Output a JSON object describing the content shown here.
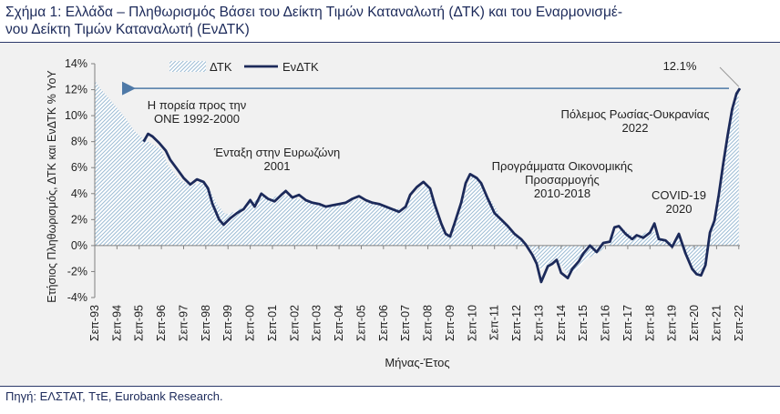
{
  "figure": {
    "title_line1": "Σχήμα 1: Ελλάδα – Πληθωρισμός Βάσει του Δείκτη Τιμών Καταναλωτή (ΔΤΚ) και του Εναρμονισμέ-",
    "title_line2": "νου Δείκτη Τιμών Καταναλωτή (ΕνΔΤΚ)",
    "source": "Πηγή: ΕΛΣΤΑΤ, ΤτΕ, Eurobank Research."
  },
  "chart_data": {
    "type": "area",
    "xlabel": "Μήνας-Έτος",
    "ylabel": "Ετήσιος Πληθωρισμός, ΔΤΚ και ΕνΔΤΚ % YoY",
    "ylim": [
      -4,
      14
    ],
    "y_ticks": [
      "14%",
      "12%",
      "10%",
      "8%",
      "6%",
      "4%",
      "2%",
      "0%",
      "-2%",
      "-4%"
    ],
    "x_ticks": [
      "Σεπ-93",
      "Σεπ-94",
      "Σεπ-95",
      "Σεπ-96",
      "Σεπ-97",
      "Σεπ-98",
      "Σεπ-99",
      "Σεπ-00",
      "Σεπ-01",
      "Σεπ-02",
      "Σεπ-03",
      "Σεπ-04",
      "Σεπ-05",
      "Σεπ-06",
      "Σεπ-07",
      "Σεπ-08",
      "Σεπ-09",
      "Σεπ-10",
      "Σεπ-11",
      "Σεπ-12",
      "Σεπ-13",
      "Σεπ-14",
      "Σεπ-15",
      "Σεπ-16",
      "Σεπ-17",
      "Σεπ-18",
      "Σεπ-19",
      "Σεπ-20",
      "Σεπ-21",
      "Σεπ-22"
    ],
    "legend": [
      "ΔΤΚ",
      "ΕνΔΤΚ"
    ],
    "legend_position": "top-left",
    "grid": false,
    "colors": {
      "cpi": "#8fb3cf",
      "hicp": "#1c2a5a",
      "arrow": "#4e79a7"
    },
    "series": [
      {
        "name": "ΔΤΚ",
        "style": "hatched-area",
        "points": [
          [
            1993.7,
            12.7
          ],
          [
            1994.0,
            12.0
          ],
          [
            1994.5,
            11.0
          ],
          [
            1995.0,
            10.0
          ],
          [
            1995.5,
            8.8
          ],
          [
            1995.9,
            8.2
          ],
          [
            1996.3,
            7.8
          ],
          [
            1996.7,
            7.4
          ],
          [
            1997.0,
            6.2
          ],
          [
            1997.5,
            5.1
          ],
          [
            1998.0,
            4.6
          ],
          [
            1998.5,
            4.9
          ],
          [
            1998.8,
            4.6
          ],
          [
            1999.2,
            3.2
          ],
          [
            1999.6,
            2.4
          ],
          [
            2000.0,
            2.6
          ],
          [
            2000.4,
            3.0
          ],
          [
            2000.8,
            3.4
          ],
          [
            2001.2,
            3.9
          ],
          [
            2001.6,
            3.6
          ],
          [
            2002.0,
            3.9
          ],
          [
            2002.5,
            3.8
          ],
          [
            2003.0,
            3.5
          ],
          [
            2003.5,
            3.4
          ],
          [
            2004.0,
            3.0
          ],
          [
            2004.5,
            3.1
          ],
          [
            2005.0,
            3.2
          ],
          [
            2005.5,
            3.6
          ],
          [
            2006.0,
            3.3
          ],
          [
            2006.5,
            3.1
          ],
          [
            2007.0,
            2.9
          ],
          [
            2007.5,
            2.8
          ],
          [
            2007.9,
            3.6
          ],
          [
            2008.3,
            4.4
          ],
          [
            2008.6,
            4.8
          ],
          [
            2008.9,
            3.8
          ],
          [
            2009.2,
            1.7
          ],
          [
            2009.5,
            0.9
          ],
          [
            2009.8,
            1.0
          ],
          [
            2010.1,
            2.4
          ],
          [
            2010.4,
            4.2
          ],
          [
            2010.7,
            5.4
          ],
          [
            2011.0,
            5.0
          ],
          [
            2011.4,
            3.8
          ],
          [
            2011.8,
            2.8
          ],
          [
            2012.0,
            2.0
          ],
          [
            2012.5,
            1.2
          ],
          [
            2012.8,
            0.6
          ],
          [
            2013.1,
            0.2
          ],
          [
            2013.4,
            -0.4
          ],
          [
            2013.8,
            -1.9
          ],
          [
            2014.0,
            -1.6
          ],
          [
            2014.3,
            -1.2
          ],
          [
            2014.7,
            -1.5
          ],
          [
            2015.0,
            -2.2
          ],
          [
            2015.4,
            -1.9
          ],
          [
            2015.8,
            -1.1
          ],
          [
            2016.1,
            -0.8
          ],
          [
            2016.5,
            -0.4
          ],
          [
            2016.8,
            0.0
          ],
          [
            2017.1,
            0.9
          ],
          [
            2017.4,
            1.4
          ],
          [
            2017.8,
            0.9
          ],
          [
            2018.1,
            0.6
          ],
          [
            2018.5,
            1.0
          ],
          [
            2018.8,
            1.2
          ],
          [
            2019.1,
            0.7
          ],
          [
            2019.5,
            0.3
          ],
          [
            2019.8,
            0.3
          ],
          [
            2020.0,
            0.8
          ],
          [
            2020.3,
            -0.8
          ],
          [
            2020.6,
            -1.9
          ],
          [
            2020.9,
            -2.2
          ],
          [
            2021.1,
            -1.7
          ],
          [
            2021.4,
            0.3
          ],
          [
            2021.7,
            2.5
          ],
          [
            2021.9,
            4.2
          ],
          [
            2022.1,
            7.0
          ],
          [
            2022.4,
            10.5
          ],
          [
            2022.7,
            12.0
          ]
        ]
      },
      {
        "name": "ΕνΔΤΚ",
        "style": "line",
        "points": [
          [
            1995.9,
            8.0
          ],
          [
            1996.1,
            8.6
          ],
          [
            1996.3,
            8.4
          ],
          [
            1996.6,
            7.9
          ],
          [
            1996.9,
            7.3
          ],
          [
            1997.1,
            6.6
          ],
          [
            1997.4,
            5.9
          ],
          [
            1997.7,
            5.2
          ],
          [
            1998.0,
            4.7
          ],
          [
            1998.3,
            5.1
          ],
          [
            1998.6,
            4.9
          ],
          [
            1998.8,
            4.4
          ],
          [
            1999.0,
            3.2
          ],
          [
            1999.3,
            2.0
          ],
          [
            1999.5,
            1.6
          ],
          [
            1999.8,
            2.1
          ],
          [
            2000.1,
            2.5
          ],
          [
            2000.4,
            2.8
          ],
          [
            2000.7,
            3.5
          ],
          [
            2000.9,
            3.0
          ],
          [
            2001.2,
            4.0
          ],
          [
            2001.5,
            3.6
          ],
          [
            2001.8,
            3.4
          ],
          [
            2002.1,
            3.9
          ],
          [
            2002.3,
            4.2
          ],
          [
            2002.6,
            3.7
          ],
          [
            2002.9,
            3.9
          ],
          [
            2003.2,
            3.5
          ],
          [
            2003.5,
            3.3
          ],
          [
            2003.8,
            3.2
          ],
          [
            2004.1,
            3.0
          ],
          [
            2004.4,
            3.1
          ],
          [
            2004.7,
            3.2
          ],
          [
            2005.0,
            3.3
          ],
          [
            2005.3,
            3.6
          ],
          [
            2005.6,
            3.8
          ],
          [
            2005.9,
            3.5
          ],
          [
            2006.2,
            3.3
          ],
          [
            2006.5,
            3.2
          ],
          [
            2006.8,
            3.0
          ],
          [
            2007.1,
            2.8
          ],
          [
            2007.4,
            2.6
          ],
          [
            2007.7,
            3.0
          ],
          [
            2007.9,
            3.9
          ],
          [
            2008.2,
            4.5
          ],
          [
            2008.5,
            4.9
          ],
          [
            2008.8,
            4.4
          ],
          [
            2009.0,
            3.2
          ],
          [
            2009.3,
            1.7
          ],
          [
            2009.5,
            0.9
          ],
          [
            2009.7,
            0.7
          ],
          [
            2009.9,
            1.7
          ],
          [
            2010.2,
            3.3
          ],
          [
            2010.4,
            4.8
          ],
          [
            2010.6,
            5.5
          ],
          [
            2010.9,
            5.2
          ],
          [
            2011.1,
            4.8
          ],
          [
            2011.4,
            3.6
          ],
          [
            2011.7,
            2.5
          ],
          [
            2012.0,
            2.0
          ],
          [
            2012.3,
            1.5
          ],
          [
            2012.6,
            0.9
          ],
          [
            2012.9,
            0.5
          ],
          [
            2013.1,
            0.1
          ],
          [
            2013.4,
            -0.7
          ],
          [
            2013.6,
            -1.4
          ],
          [
            2013.8,
            -2.8
          ],
          [
            2014.1,
            -1.6
          ],
          [
            2014.3,
            -1.4
          ],
          [
            2014.5,
            -1.1
          ],
          [
            2014.7,
            -2.1
          ],
          [
            2015.0,
            -2.5
          ],
          [
            2015.2,
            -1.8
          ],
          [
            2015.5,
            -1.2
          ],
          [
            2015.7,
            -0.6
          ],
          [
            2016.0,
            0.0
          ],
          [
            2016.3,
            -0.5
          ],
          [
            2016.6,
            0.2
          ],
          [
            2016.9,
            0.3
          ],
          [
            2017.1,
            1.4
          ],
          [
            2017.3,
            1.5
          ],
          [
            2017.6,
            0.9
          ],
          [
            2017.9,
            0.5
          ],
          [
            2018.1,
            0.8
          ],
          [
            2018.4,
            0.6
          ],
          [
            2018.7,
            1.0
          ],
          [
            2018.9,
            1.7
          ],
          [
            2019.1,
            0.5
          ],
          [
            2019.4,
            0.4
          ],
          [
            2019.7,
            -0.1
          ],
          [
            2020.0,
            0.9
          ],
          [
            2020.3,
            -0.6
          ],
          [
            2020.6,
            -1.8
          ],
          [
            2020.8,
            -2.2
          ],
          [
            2021.0,
            -2.3
          ],
          [
            2021.2,
            -1.5
          ],
          [
            2021.4,
            1.0
          ],
          [
            2021.6,
            1.9
          ],
          [
            2021.8,
            3.9
          ],
          [
            2022.0,
            6.3
          ],
          [
            2022.2,
            8.5
          ],
          [
            2022.4,
            10.5
          ],
          [
            2022.6,
            11.7
          ],
          [
            2022.75,
            12.1
          ]
        ]
      }
    ],
    "annotations": [
      {
        "key": "ona",
        "lines": [
          "Η πορεία προς την",
          "ΟΝΕ 1992-2000"
        ]
      },
      {
        "key": "euro",
        "lines": [
          "Ένταξη στην Ευρωζώνη",
          "2001"
        ]
      },
      {
        "key": "program",
        "lines": [
          "Προγράμματα Οικονομικής",
          "Προσαρμογής",
          "2010-2018"
        ]
      },
      {
        "key": "covid",
        "lines": [
          "COVID-19",
          "2020"
        ]
      },
      {
        "key": "war",
        "lines": [
          "Πόλεμος Ρωσίας-Ουκρανίας",
          "2022"
        ]
      },
      {
        "key": "peak",
        "lines": [
          "12.1%"
        ]
      }
    ]
  }
}
